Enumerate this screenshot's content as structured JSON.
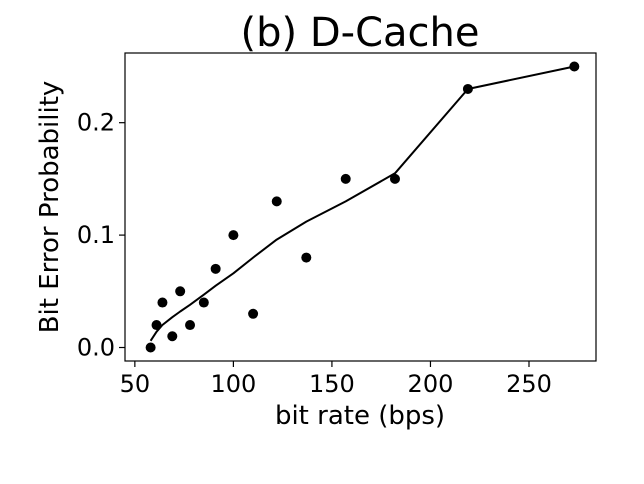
{
  "chart_data": {
    "type": "scatter",
    "title": "(b) D-Cache",
    "xlabel": "bit rate (bps)",
    "ylabel": "Bit Error Probability",
    "xlim": [
      45,
      284
    ],
    "ylim": [
      -0.012,
      0.262
    ],
    "xticks": [
      50,
      100,
      150,
      200,
      250
    ],
    "xtick_labels": [
      "50",
      "100",
      "150",
      "200",
      "250"
    ],
    "yticks": [
      0.0,
      0.1,
      0.2
    ],
    "ytick_labels": [
      "0.0",
      "0.1",
      "0.2"
    ],
    "grid": false,
    "points": [
      {
        "x": 58,
        "y": 0.0
      },
      {
        "x": 61,
        "y": 0.02
      },
      {
        "x": 64,
        "y": 0.04
      },
      {
        "x": 69,
        "y": 0.01
      },
      {
        "x": 73,
        "y": 0.05
      },
      {
        "x": 78,
        "y": 0.02
      },
      {
        "x": 85,
        "y": 0.04
      },
      {
        "x": 91,
        "y": 0.07
      },
      {
        "x": 100,
        "y": 0.1
      },
      {
        "x": 110,
        "y": 0.03
      },
      {
        "x": 122,
        "y": 0.13
      },
      {
        "x": 137,
        "y": 0.08
      },
      {
        "x": 157,
        "y": 0.15
      },
      {
        "x": 182,
        "y": 0.15
      },
      {
        "x": 219,
        "y": 0.23
      },
      {
        "x": 273,
        "y": 0.25
      }
    ],
    "fit_line": [
      {
        "x": 58,
        "y": 0.006
      },
      {
        "x": 61,
        "y": 0.014
      },
      {
        "x": 64,
        "y": 0.02
      },
      {
        "x": 69,
        "y": 0.027
      },
      {
        "x": 73,
        "y": 0.032
      },
      {
        "x": 78,
        "y": 0.038
      },
      {
        "x": 85,
        "y": 0.047
      },
      {
        "x": 91,
        "y": 0.055
      },
      {
        "x": 100,
        "y": 0.066
      },
      {
        "x": 110,
        "y": 0.08
      },
      {
        "x": 122,
        "y": 0.096
      },
      {
        "x": 137,
        "y": 0.112
      },
      {
        "x": 157,
        "y": 0.13
      },
      {
        "x": 182,
        "y": 0.155
      },
      {
        "x": 219,
        "y": 0.23
      },
      {
        "x": 273,
        "y": 0.25
      }
    ]
  }
}
